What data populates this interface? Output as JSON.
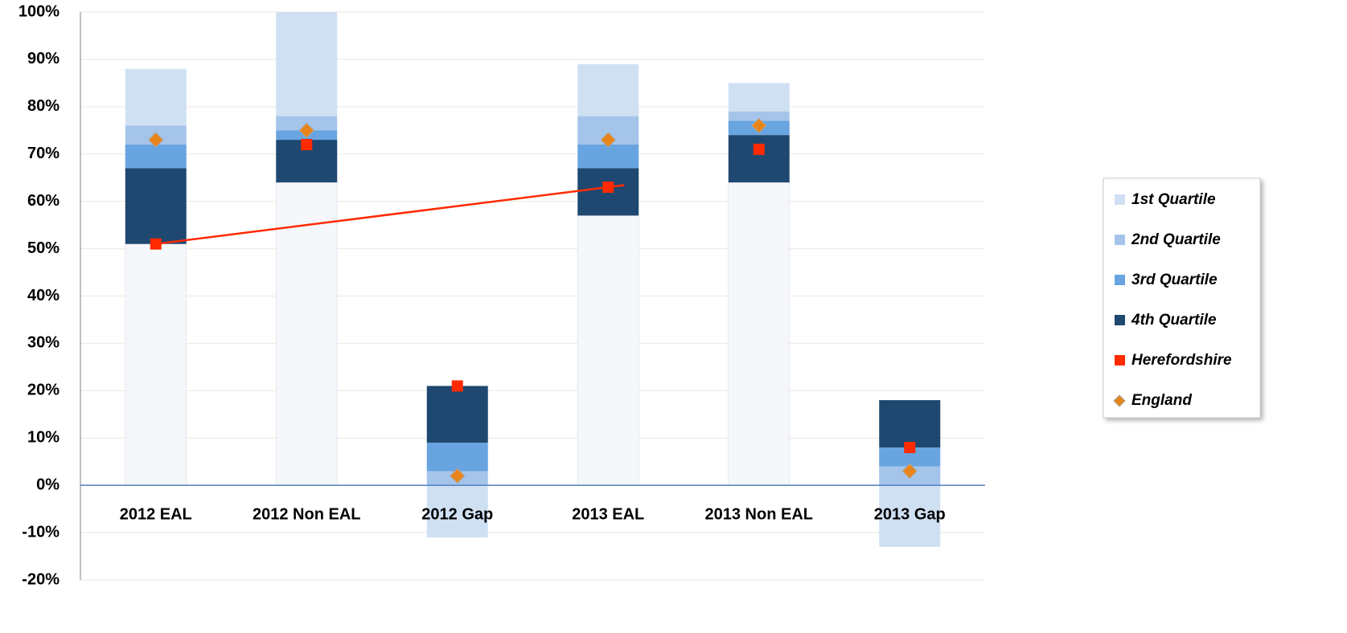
{
  "chart_data": {
    "type": "floating_bar",
    "categories": [
      "2012 EAL",
      "2012 Non EAL",
      "2012 Gap",
      "2013 EAL",
      "2013 Non EAL",
      "2013 Gap"
    ],
    "series": [
      {
        "name": "1st Quartile",
        "color": "#cfe0f3",
        "values": [
          [
            76,
            88
          ],
          [
            78,
            100
          ],
          [
            -11,
            0
          ],
          [
            78,
            89
          ],
          [
            79,
            85
          ],
          [
            -13,
            0
          ]
        ]
      },
      {
        "name": "2nd Quartile",
        "color": "#a5c4ea",
        "values": [
          [
            72,
            76
          ],
          [
            75,
            78
          ],
          [
            0,
            3
          ],
          [
            72,
            78
          ],
          [
            77,
            79
          ],
          [
            0,
            4
          ]
        ]
      },
      {
        "name": "3rd Quartile",
        "color": "#68a4e0",
        "values": [
          [
            67,
            72
          ],
          [
            73,
            75
          ],
          [
            3,
            9
          ],
          [
            67,
            72
          ],
          [
            74,
            77
          ],
          [
            4,
            8
          ]
        ]
      },
      {
        "name": "4th Quartile",
        "color": "#1f4870",
        "values": [
          [
            51,
            67
          ],
          [
            64,
            73
          ],
          [
            9,
            21
          ],
          [
            57,
            67
          ],
          [
            64,
            74
          ],
          [
            8,
            18
          ]
        ]
      }
    ],
    "points": [
      {
        "name": "Herefordshire",
        "color": "#ff2a00",
        "marker": "square",
        "values": [
          51,
          72,
          21,
          63,
          71,
          8
        ]
      },
      {
        "name": "England",
        "color": "#e8851a",
        "marker": "diamond",
        "values": [
          73,
          75,
          2,
          73,
          76,
          3
        ]
      }
    ],
    "trend_line": {
      "color": "#ff2a00",
      "categories": [
        "2012 EAL",
        "2013 EAL"
      ]
    },
    "base_color": "#f5f7fa",
    "ylim": [
      -20,
      100
    ],
    "yticks": [
      {
        "value": -20,
        "label": "-20%"
      },
      {
        "value": -10,
        "label": "-10%"
      },
      {
        "value": 0,
        "label": "0%"
      },
      {
        "value": 10,
        "label": "10%"
      },
      {
        "value": 20,
        "label": "20%"
      },
      {
        "value": 30,
        "label": "30%"
      },
      {
        "value": 40,
        "label": "40%"
      },
      {
        "value": 50,
        "label": "50%"
      },
      {
        "value": 60,
        "label": "60%"
      },
      {
        "value": 70,
        "label": "70%"
      },
      {
        "value": 80,
        "label": "80%"
      },
      {
        "value": 90,
        "label": "90%"
      },
      {
        "value": 100,
        "label": "100%"
      }
    ],
    "grid": true
  }
}
